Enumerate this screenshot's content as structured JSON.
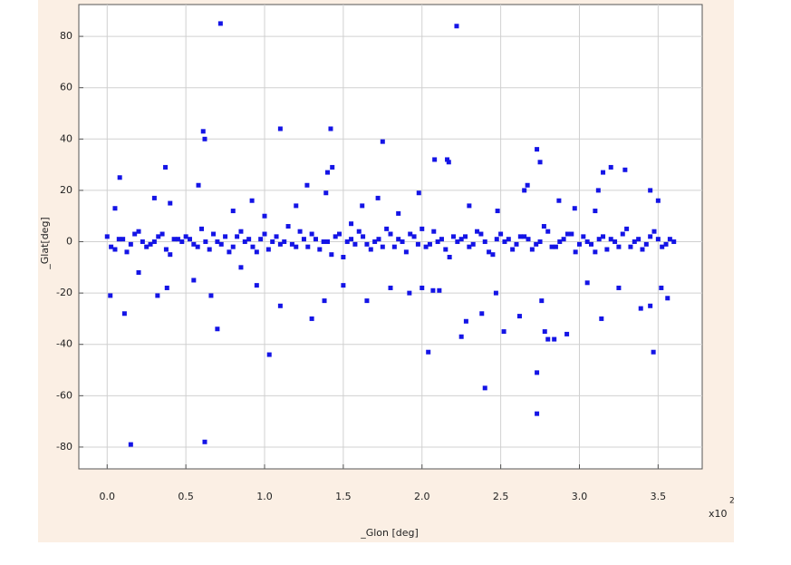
{
  "chart_data": {
    "type": "scatter",
    "x_label": "_Glon [deg]",
    "y_label": "_Glat[deg]",
    "x_multiplier": "x10",
    "x_multiplier_exp": "2",
    "xlim": [
      -0.18,
      3.78
    ],
    "ylim": [
      -88.5,
      92.4
    ],
    "xticks": [
      {
        "value": 0,
        "label": "0.0"
      },
      {
        "value": 0.5,
        "label": "0.5"
      },
      {
        "value": 1,
        "label": "1.0"
      },
      {
        "value": 1.5,
        "label": "1.5"
      },
      {
        "value": 2,
        "label": "2.0"
      },
      {
        "value": 2.5,
        "label": "2.5"
      },
      {
        "value": 3,
        "label": "3.0"
      },
      {
        "value": 3.5,
        "label": "3.5"
      }
    ],
    "yticks": [
      -80,
      -60,
      -40,
      -20,
      0,
      20,
      40,
      60,
      80
    ],
    "grid": true,
    "series": [
      {
        "color": "#1414e6",
        "x": [
          0.72,
          2.22,
          0.61,
          0.62,
          1.1,
          1.42,
          1.75,
          0.37,
          0.08,
          0.58,
          1.27,
          1.4,
          1.43,
          1.39,
          2.08,
          2.16,
          2.17,
          2.73,
          2.75,
          2.67,
          2.65,
          3.12,
          3.15,
          3.2,
          3.29,
          3.45,
          0.3,
          0.02,
          0.11,
          0.15,
          0.62,
          0.7,
          1.03,
          1.1,
          1.3,
          1.38,
          2.04,
          2.25,
          2.4,
          2.38,
          2.52,
          2.73,
          2.73,
          2.78,
          2.8,
          2.84,
          2.92,
          3.14,
          3.47,
          3.39,
          3.45,
          3.56,
          0.32,
          0.66,
          1.65,
          1.92,
          2.07,
          2.11,
          2.28,
          2.47,
          2.62,
          2.76,
          0.2,
          0.38,
          0.55,
          0.85,
          0.95,
          1.5,
          1.8,
          2.0,
          3.05,
          3.25,
          3.52,
          0.4,
          0.8,
          0.92,
          1.2,
          1.62,
          1.72,
          1.98,
          2.3,
          2.48,
          2.87,
          2.97,
          3.1,
          3.5,
          0.05,
          1.0,
          1.55,
          1.85,
          0.0,
          0.05,
          0.1,
          0.15,
          0.2,
          0.25,
          0.3,
          0.35,
          0.4,
          0.45,
          0.5,
          0.55,
          0.6,
          0.65,
          0.7,
          0.75,
          0.8,
          0.85,
          0.9,
          0.95,
          1.0,
          1.05,
          1.1,
          1.15,
          1.2,
          1.25,
          1.3,
          1.35,
          1.4,
          1.45,
          1.5,
          1.55,
          1.6,
          1.65,
          1.7,
          1.75,
          1.8,
          1.85,
          1.9,
          1.95,
          2.0,
          2.05,
          2.1,
          2.15,
          2.2,
          2.25,
          2.3,
          2.35,
          2.4,
          2.45,
          2.5,
          2.55,
          2.6,
          2.65,
          2.7,
          2.75,
          2.8,
          2.85,
          2.9,
          2.95,
          3.0,
          3.05,
          3.1,
          3.15,
          3.2,
          3.25,
          3.3,
          3.35,
          3.4,
          3.45,
          3.5,
          3.55,
          3.6,
          0.025,
          0.075,
          0.125,
          0.175,
          0.225,
          0.275,
          0.325,
          0.375,
          0.425,
          0.475,
          0.525,
          0.575,
          0.625,
          0.675,
          0.725,
          0.775,
          0.825,
          0.875,
          0.925,
          0.975,
          1.025,
          1.075,
          1.125,
          1.175,
          1.225,
          1.275,
          1.325,
          1.375,
          1.425,
          1.475,
          1.525,
          1.575,
          1.625,
          1.675,
          1.725,
          1.775,
          1.825,
          1.875,
          1.925,
          1.975,
          2.025,
          2.075,
          2.125,
          2.175,
          2.225,
          2.275,
          2.325,
          2.375,
          2.425,
          2.475,
          2.525,
          2.575,
          2.625,
          2.675,
          2.725,
          2.775,
          2.825,
          2.875,
          2.925,
          2.975,
          3.025,
          3.075,
          3.125,
          3.175,
          3.225,
          3.275,
          3.325,
          3.375,
          3.425,
          3.475,
          3.525,
          3.575
        ],
        "values": [
          85,
          84,
          43,
          40,
          44,
          44,
          39,
          29,
          25,
          22,
          22,
          27,
          29,
          19,
          32,
          32,
          31,
          36,
          31,
          22,
          20,
          20,
          27,
          29,
          28,
          20,
          17,
          -21,
          -28,
          -79,
          -78,
          -34,
          -44,
          -25,
          -30,
          -23,
          -43,
          -37,
          -57,
          -28,
          -35,
          -51,
          -67,
          -35,
          -38,
          -38,
          -36,
          -30,
          -43,
          -26,
          -25,
          -22,
          -21,
          -21,
          -23,
          -20,
          -19,
          -19,
          -31,
          -20,
          -29,
          -23,
          -12,
          -18,
          -15,
          -10,
          -17,
          -17,
          -18,
          -18,
          -16,
          -18,
          -18,
          15,
          12,
          16,
          14,
          14,
          17,
          19,
          14,
          12,
          16,
          13,
          12,
          16,
          13,
          10,
          7,
          11,
          2,
          -3,
          1,
          -1,
          4,
          -2,
          0,
          3,
          -5,
          1,
          2,
          -1,
          5,
          -3,
          0,
          2,
          -2,
          4,
          1,
          -4,
          3,
          0,
          -1,
          6,
          -2,
          1,
          3,
          -3,
          0,
          2,
          -6,
          1,
          4,
          -1,
          0,
          -2,
          3,
          1,
          -4,
          2,
          5,
          -1,
          0,
          -3,
          2,
          1,
          -2,
          4,
          0,
          -5,
          3,
          1,
          -1,
          2,
          -3,
          0,
          4,
          -2,
          1,
          3,
          -1,
          0,
          -4,
          2,
          1,
          -2,
          5,
          0,
          -3,
          2,
          1,
          -1,
          0,
          -2,
          1,
          -4,
          3,
          0,
          -1,
          2,
          -3,
          1,
          0,
          1,
          -2,
          0,
          3,
          -1,
          -4,
          2,
          0,
          -2,
          1,
          -3,
          2,
          0,
          -1,
          4,
          -2,
          1,
          0,
          -5,
          3,
          0,
          -1,
          2,
          -3,
          1,
          5,
          -2,
          0,
          3,
          -1,
          -2,
          4,
          1,
          -6,
          0,
          2,
          -1,
          3,
          -4,
          1,
          0,
          -3,
          2,
          1,
          -1,
          6,
          -2,
          0,
          3,
          -4,
          2,
          -1,
          1,
          -3,
          0,
          3,
          -2,
          1,
          -1,
          4,
          -2,
          1
        ]
      }
    ]
  }
}
